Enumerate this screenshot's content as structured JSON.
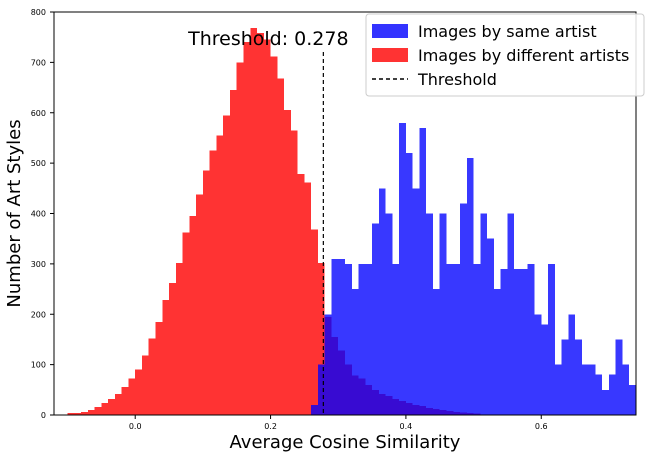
{
  "chart_data": {
    "type": "bar",
    "title": "",
    "xlabel": "Average Cosine Similarity",
    "ylabel": "Number of Art Styles",
    "xlim": [
      -0.12,
      0.74
    ],
    "ylim": [
      0,
      800
    ],
    "xticks": [
      0.0,
      0.2,
      0.4,
      0.6
    ],
    "xtick_labels": [
      "0.0",
      "0.2",
      "0.4",
      "0.6"
    ],
    "yticks": [
      0,
      100,
      200,
      300,
      400,
      500,
      600,
      700,
      800
    ],
    "ytick_labels": [
      "0",
      "100",
      "200",
      "300",
      "400",
      "500",
      "600",
      "700",
      "800"
    ],
    "grid": false,
    "legend_position": "top-right",
    "annotation": "Threshold: 0.278",
    "threshold": 0.278,
    "threshold_label": "Threshold",
    "series": [
      {
        "name": "Images by different artists",
        "color": "#ff0000",
        "opacity": 0.8,
        "bin_width": 0.01,
        "bins": [
          [
            -0.1,
            4
          ],
          [
            -0.09,
            4
          ],
          [
            -0.08,
            6
          ],
          [
            -0.07,
            10
          ],
          [
            -0.06,
            16
          ],
          [
            -0.05,
            24
          ],
          [
            -0.04,
            32
          ],
          [
            -0.03,
            42
          ],
          [
            -0.02,
            56
          ],
          [
            -0.01,
            72
          ],
          [
            0.0,
            90
          ],
          [
            0.01,
            118
          ],
          [
            0.02,
            152
          ],
          [
            0.03,
            185
          ],
          [
            0.04,
            228
          ],
          [
            0.05,
            262
          ],
          [
            0.06,
            302
          ],
          [
            0.07,
            362
          ],
          [
            0.08,
            395
          ],
          [
            0.09,
            438
          ],
          [
            0.1,
            485
          ],
          [
            0.11,
            525
          ],
          [
            0.12,
            555
          ],
          [
            0.13,
            595
          ],
          [
            0.14,
            645
          ],
          [
            0.15,
            700
          ],
          [
            0.16,
            740
          ],
          [
            0.17,
            768
          ],
          [
            0.18,
            758
          ],
          [
            0.19,
            745
          ],
          [
            0.2,
            712
          ],
          [
            0.21,
            668
          ],
          [
            0.22,
            605
          ],
          [
            0.23,
            565
          ],
          [
            0.24,
            478
          ],
          [
            0.25,
            462
          ],
          [
            0.26,
            368
          ],
          [
            0.27,
            302
          ],
          [
            0.28,
            195
          ],
          [
            0.29,
            155
          ],
          [
            0.3,
            128
          ],
          [
            0.31,
            100
          ],
          [
            0.32,
            78
          ],
          [
            0.33,
            72
          ],
          [
            0.34,
            60
          ],
          [
            0.35,
            50
          ],
          [
            0.36,
            42
          ],
          [
            0.37,
            38
          ],
          [
            0.38,
            32
          ],
          [
            0.39,
            28
          ],
          [
            0.4,
            24
          ],
          [
            0.41,
            20
          ],
          [
            0.42,
            18
          ],
          [
            0.43,
            14
          ],
          [
            0.44,
            12
          ],
          [
            0.45,
            10
          ],
          [
            0.46,
            8
          ],
          [
            0.47,
            6
          ],
          [
            0.48,
            5
          ],
          [
            0.49,
            4
          ],
          [
            0.5,
            3
          ]
        ]
      },
      {
        "name": "Images by same artist",
        "color": "#0000ff",
        "opacity": 0.78,
        "bin_width": 0.01,
        "bins": [
          [
            0.26,
            20
          ],
          [
            0.27,
            100
          ],
          [
            0.28,
            200
          ],
          [
            0.29,
            310
          ],
          [
            0.3,
            310
          ],
          [
            0.31,
            300
          ],
          [
            0.32,
            250
          ],
          [
            0.33,
            300
          ],
          [
            0.34,
            300
          ],
          [
            0.35,
            380
          ],
          [
            0.36,
            450
          ],
          [
            0.37,
            400
          ],
          [
            0.38,
            300
          ],
          [
            0.39,
            580
          ],
          [
            0.4,
            520
          ],
          [
            0.41,
            450
          ],
          [
            0.42,
            570
          ],
          [
            0.43,
            400
          ],
          [
            0.44,
            250
          ],
          [
            0.45,
            400
          ],
          [
            0.46,
            300
          ],
          [
            0.47,
            300
          ],
          [
            0.48,
            420
          ],
          [
            0.49,
            510
          ],
          [
            0.5,
            300
          ],
          [
            0.51,
            400
          ],
          [
            0.52,
            350
          ],
          [
            0.53,
            250
          ],
          [
            0.54,
            290
          ],
          [
            0.55,
            400
          ],
          [
            0.56,
            290
          ],
          [
            0.57,
            290
          ],
          [
            0.58,
            300
          ],
          [
            0.59,
            200
          ],
          [
            0.6,
            180
          ],
          [
            0.61,
            300
          ],
          [
            0.62,
            100
          ],
          [
            0.63,
            150
          ],
          [
            0.64,
            200
          ],
          [
            0.65,
            150
          ],
          [
            0.66,
            100
          ],
          [
            0.67,
            100
          ],
          [
            0.68,
            80
          ],
          [
            0.69,
            50
          ],
          [
            0.7,
            80
          ],
          [
            0.71,
            150
          ],
          [
            0.72,
            100
          ],
          [
            0.73,
            60
          ]
        ]
      }
    ],
    "legend": [
      {
        "label": "Images by same artist",
        "kind": "patch",
        "color": "#0000ff"
      },
      {
        "label": "Images by different artists",
        "kind": "patch",
        "color": "#ff0000"
      },
      {
        "label": "Threshold",
        "kind": "dashed-line",
        "color": "#000000"
      }
    ]
  }
}
